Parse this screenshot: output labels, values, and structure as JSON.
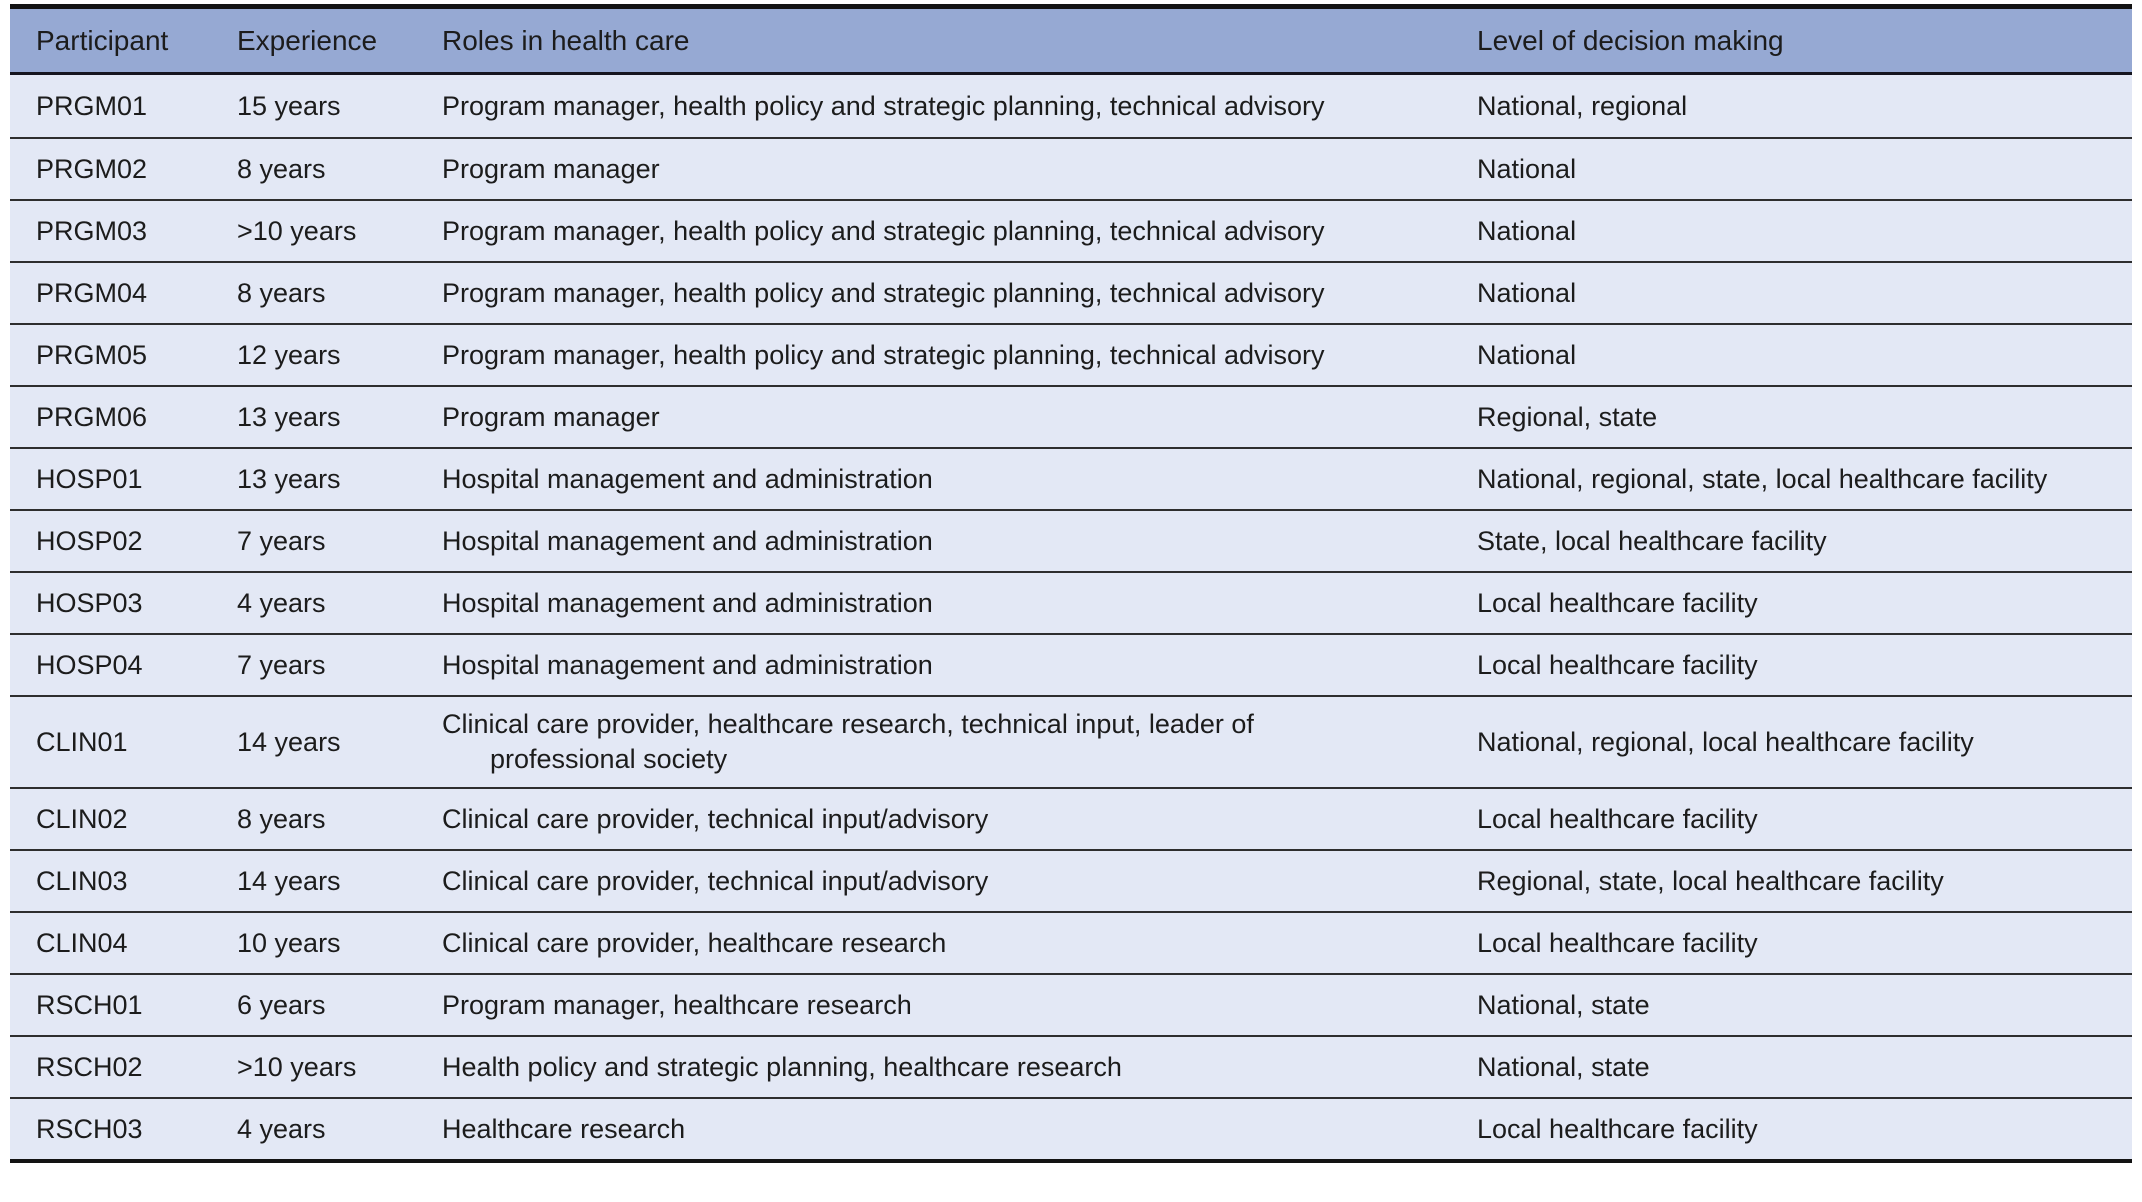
{
  "colors": {
    "header_bg": "#96a9d3",
    "row_bg": "#e3e8f5",
    "outer_border": "#131313",
    "row_divider": "#2e2e2e",
    "text": "#1c1c1c"
  },
  "table": {
    "columns": {
      "participant": "Participant",
      "experience": "Experience",
      "roles": "Roles in health care",
      "level": "Level of decision making"
    },
    "rows": [
      {
        "participant": "PRGM01",
        "experience": "15 years",
        "roles": "Program manager, health policy and strategic planning, technical advisory",
        "level": "National, regional"
      },
      {
        "participant": "PRGM02",
        "experience": "8 years",
        "roles": "Program manager",
        "level": "National"
      },
      {
        "participant": "PRGM03",
        "experience": ">10 years",
        "roles": "Program manager, health policy and strategic planning, technical advisory",
        "level": "National"
      },
      {
        "participant": "PRGM04",
        "experience": "8 years",
        "roles": "Program manager, health policy and strategic planning, technical advisory",
        "level": "National"
      },
      {
        "participant": "PRGM05",
        "experience": "12 years",
        "roles": "Program manager, health policy and strategic planning, technical advisory",
        "level": "National"
      },
      {
        "participant": "PRGM06",
        "experience": "13 years",
        "roles": "Program manager",
        "level": "Regional, state"
      },
      {
        "participant": "HOSP01",
        "experience": "13 years",
        "roles": "Hospital management and administration",
        "level": "National, regional, state, local healthcare facility"
      },
      {
        "participant": "HOSP02",
        "experience": "7 years",
        "roles": "Hospital management and administration",
        "level": "State, local healthcare facility"
      },
      {
        "participant": "HOSP03",
        "experience": "4 years",
        "roles": "Hospital management and administration",
        "level": "Local healthcare facility"
      },
      {
        "participant": "HOSP04",
        "experience": "7 years",
        "roles": "Hospital management and administration",
        "level": "Local healthcare facility"
      },
      {
        "participant": "CLIN01",
        "experience": "14 years",
        "roles": "Clinical care provider, healthcare research, technical input, leader of professional society",
        "level": "National, regional, local healthcare facility"
      },
      {
        "participant": "CLIN02",
        "experience": "8 years",
        "roles": "Clinical care provider, technical input/advisory",
        "level": "Local healthcare facility"
      },
      {
        "participant": "CLIN03",
        "experience": "14 years",
        "roles": "Clinical care provider, technical input/advisory",
        "level": "Regional, state, local healthcare facility"
      },
      {
        "participant": "CLIN04",
        "experience": "10 years",
        "roles": "Clinical care provider, healthcare research",
        "level": "Local healthcare facility"
      },
      {
        "participant": "RSCH01",
        "experience": "6 years",
        "roles": "Program manager, healthcare research",
        "level": "National, state"
      },
      {
        "participant": "RSCH02",
        "experience": ">10 years",
        "roles": "Health policy and strategic planning, healthcare research",
        "level": "National, state"
      },
      {
        "participant": "RSCH03",
        "experience": "4 years",
        "roles": "Healthcare research",
        "level": "Local healthcare facility"
      }
    ]
  }
}
